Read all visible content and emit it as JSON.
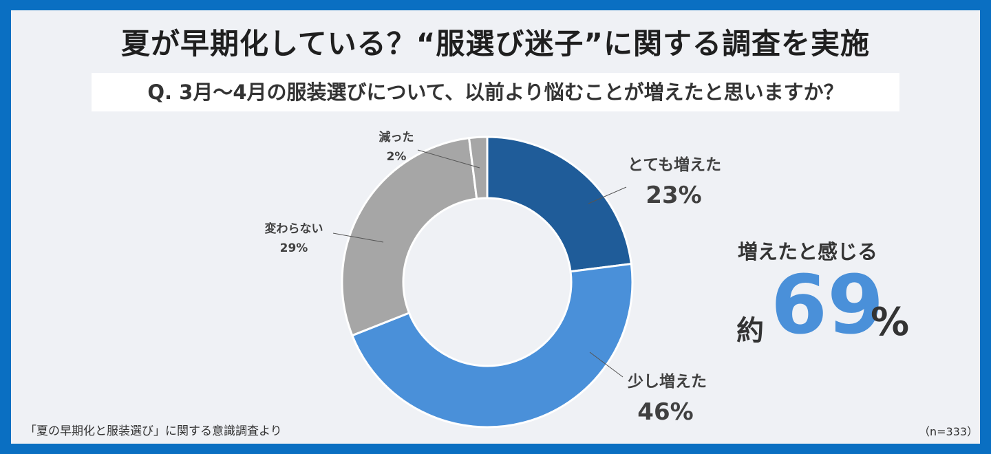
{
  "title": "夏が早期化している？“服選び迷子”に関する調査を実施",
  "question": "Q. 3月〜4月の服装選びについて、以前より悩むことが増えたと思いますか？",
  "chart_data": {
    "type": "pie",
    "donut": true,
    "categories": [
      "とても増えた",
      "少し増えた",
      "変わらない",
      "減った"
    ],
    "values": [
      23,
      46,
      29,
      2
    ],
    "value_labels": [
      "23%",
      "46%",
      "29%",
      "2%"
    ],
    "colors": [
      "#1f5c99",
      "#4a90d9",
      "#a6a6a6",
      "#a6a6a6"
    ]
  },
  "summary": {
    "heading": "増えたと感じる",
    "prefix": "約",
    "value": "69",
    "unit": "%"
  },
  "source": "「夏の早期化と服装選び」に関する意識調査より",
  "sample_size": "（n=333）"
}
